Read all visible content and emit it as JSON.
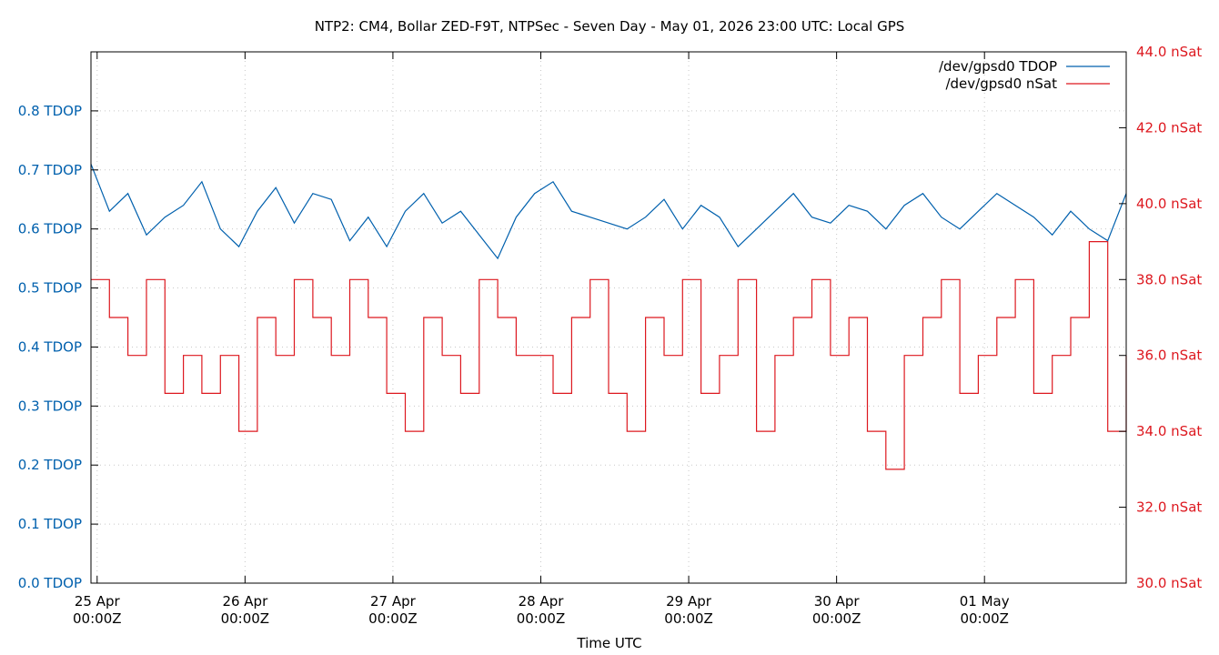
{
  "chart_data": {
    "type": "line",
    "title": "NTP2: CM4, Bollar ZED-F9T, NTPSec - Seven Day - May 01, 2026 23:00 UTC: Local GPS",
    "xlabel": "Time UTC",
    "x_ticks": [
      {
        "date": "25 Apr",
        "time": "00:00Z"
      },
      {
        "date": "26 Apr",
        "time": "00:00Z"
      },
      {
        "date": "27 Apr",
        "time": "00:00Z"
      },
      {
        "date": "28 Apr",
        "time": "00:00Z"
      },
      {
        "date": "29 Apr",
        "time": "00:00Z"
      },
      {
        "date": "30 Apr",
        "time": "00:00Z"
      },
      {
        "date": "01 May",
        "time": "00:00Z"
      }
    ],
    "xlim": [
      "2026-04-24T23:00Z",
      "2026-05-01T23:00Z"
    ],
    "y_left": {
      "range": [
        0.0,
        0.9
      ],
      "ticks": [
        "0.0 TDOP",
        "0.1 TDOP",
        "0.2 TDOP",
        "0.3 TDOP",
        "0.4 TDOP",
        "0.5 TDOP",
        "0.6 TDOP",
        "0.7 TDOP",
        "0.8 TDOP"
      ],
      "color": "#0060ad"
    },
    "y_right": {
      "range": [
        30.0,
        44.0
      ],
      "ticks": [
        "30.0 nSat",
        "32.0 nSat",
        "34.0 nSat",
        "36.0 nSat",
        "38.0 nSat",
        "40.0 nSat",
        "42.0 nSat",
        "44.0 nSat"
      ],
      "color": "#dd181f"
    },
    "grid": true,
    "legend_position": "top-right",
    "series": [
      {
        "name": "/dev/gpsd0 TDOP",
        "axis": "left",
        "color": "#0060ad",
        "x_hours": [
          0,
          3,
          6,
          9,
          12,
          15,
          18,
          21,
          24,
          27,
          30,
          33,
          36,
          39,
          42,
          45,
          48,
          51,
          54,
          57,
          60,
          63,
          66,
          69,
          72,
          75,
          78,
          81,
          84,
          87,
          90,
          93,
          96,
          99,
          102,
          105,
          108,
          111,
          114,
          117,
          120,
          123,
          126,
          129,
          132,
          135,
          138,
          141,
          144,
          147,
          150,
          153,
          156,
          159,
          162,
          165,
          168
        ],
        "values": [
          0.71,
          0.63,
          0.66,
          0.59,
          0.62,
          0.64,
          0.68,
          0.6,
          0.57,
          0.63,
          0.67,
          0.61,
          0.66,
          0.65,
          0.58,
          0.62,
          0.57,
          0.63,
          0.66,
          0.61,
          0.63,
          0.59,
          0.55,
          0.62,
          0.66,
          0.68,
          0.63,
          0.62,
          0.61,
          0.6,
          0.62,
          0.65,
          0.6,
          0.64,
          0.62,
          0.57,
          0.6,
          0.63,
          0.66,
          0.62,
          0.61,
          0.64,
          0.63,
          0.6,
          0.64,
          0.66,
          0.62,
          0.6,
          0.63,
          0.66,
          0.64,
          0.62,
          0.59,
          0.63,
          0.6,
          0.58,
          0.66
        ]
      },
      {
        "name": "/dev/gpsd0 nSat",
        "axis": "right",
        "color": "#dd181f",
        "x_hours": [
          0,
          3,
          6,
          9,
          12,
          15,
          18,
          21,
          24,
          27,
          30,
          33,
          36,
          39,
          42,
          45,
          48,
          51,
          54,
          57,
          60,
          63,
          66,
          69,
          72,
          75,
          78,
          81,
          84,
          87,
          90,
          93,
          96,
          99,
          102,
          105,
          108,
          111,
          114,
          117,
          120,
          123,
          126,
          129,
          132,
          135,
          138,
          141,
          144,
          147,
          150,
          153,
          156,
          159,
          162,
          165,
          168
        ],
        "values": [
          38,
          37,
          36,
          38,
          35,
          36,
          35,
          36,
          34,
          37,
          36,
          38,
          37,
          36,
          38,
          37,
          35,
          34,
          37,
          36,
          35,
          38,
          37,
          36,
          36,
          35,
          37,
          38,
          35,
          34,
          37,
          36,
          38,
          35,
          36,
          38,
          34,
          36,
          37,
          38,
          36,
          37,
          34,
          33,
          36,
          37,
          38,
          35,
          36,
          37,
          38,
          35,
          36,
          37,
          39,
          34,
          36
        ]
      }
    ]
  }
}
